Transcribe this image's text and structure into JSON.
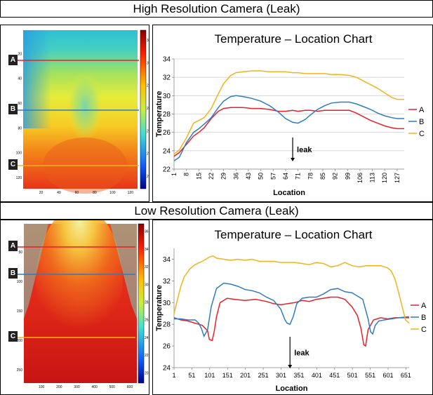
{
  "sections": [
    {
      "title": "High Resolution Camera (Leak)"
    },
    {
      "title": "Low Resolution Camera (Leak)"
    }
  ],
  "markers": [
    "A",
    "B",
    "C"
  ],
  "colors": {
    "A": "#e8202b",
    "B": "#2e7cbf",
    "C": "#f2b21c"
  },
  "thermal_high": {
    "y_ticks": [
      "20",
      "40",
      "60",
      "80",
      "100",
      "120"
    ],
    "x_ticks": [
      "20",
      "40",
      "60",
      "80",
      "100",
      "120"
    ],
    "colorbar_ticks": [
      "32",
      "30",
      "28",
      "26",
      "24",
      "22",
      "20"
    ]
  },
  "thermal_low": {
    "y_ticks": [
      "50",
      "100",
      "150",
      "200",
      "250"
    ],
    "x_ticks": [
      "100",
      "200",
      "300",
      "400",
      "500",
      "600"
    ],
    "colorbar_ticks": [
      "36",
      "34",
      "32",
      "30",
      "28",
      "26",
      "24",
      "22",
      "20"
    ]
  },
  "chart_data": [
    {
      "type": "line",
      "title": "Temperature – Location Chart",
      "xlabel": "Location",
      "ylabel": "Temperature",
      "ylim": [
        22,
        34
      ],
      "yticks": [
        22,
        24,
        26,
        28,
        30,
        32,
        34
      ],
      "xlim": [
        1,
        131
      ],
      "xticks": [
        1,
        8,
        15,
        22,
        29,
        36,
        43,
        50,
        57,
        64,
        71,
        78,
        85,
        92,
        99,
        106,
        113,
        120,
        127
      ],
      "grid": true,
      "legend": "right",
      "annotation": {
        "text": "leak",
        "x": 68
      },
      "series": [
        {
          "name": "A",
          "x": [
            1,
            4,
            8,
            12,
            15,
            18,
            22,
            26,
            29,
            33,
            36,
            40,
            45,
            50,
            55,
            60,
            64,
            68,
            71,
            75,
            78,
            82,
            86,
            90,
            95,
            100,
            104,
            108,
            112,
            116,
            120,
            124,
            127,
            131
          ],
          "y": [
            23.4,
            23.8,
            24.7,
            25.6,
            26.0,
            26.5,
            27.5,
            28.3,
            28.6,
            28.7,
            28.7,
            28.7,
            28.6,
            28.6,
            28.5,
            28.3,
            28.3,
            28.4,
            28.3,
            28.4,
            28.4,
            28.3,
            28.4,
            28.4,
            28.4,
            28.4,
            28.1,
            27.7,
            27.3,
            27.0,
            26.7,
            26.5,
            26.4,
            26.4
          ]
        },
        {
          "name": "B",
          "x": [
            1,
            4,
            8,
            12,
            15,
            18,
            22,
            26,
            29,
            33,
            36,
            40,
            45,
            50,
            55,
            60,
            64,
            68,
            71,
            75,
            78,
            82,
            86,
            90,
            95,
            100,
            104,
            108,
            112,
            116,
            120,
            124,
            127,
            131
          ],
          "y": [
            22.9,
            23.3,
            24.9,
            26.0,
            26.4,
            26.9,
            27.6,
            28.7,
            29.4,
            29.9,
            30.0,
            29.9,
            29.7,
            29.4,
            28.9,
            28.2,
            27.5,
            27.1,
            27.0,
            27.4,
            27.9,
            28.5,
            28.9,
            29.2,
            29.3,
            29.3,
            29.1,
            28.8,
            28.5,
            28.1,
            27.8,
            27.6,
            27.5,
            27.5
          ]
        },
        {
          "name": "C",
          "x": [
            1,
            4,
            8,
            12,
            15,
            18,
            22,
            26,
            29,
            33,
            36,
            40,
            45,
            50,
            55,
            60,
            64,
            68,
            71,
            75,
            78,
            82,
            86,
            90,
            95,
            100,
            104,
            108,
            112,
            116,
            120,
            124,
            127,
            131
          ],
          "y": [
            23.6,
            24.1,
            25.4,
            27.0,
            27.3,
            27.6,
            28.6,
            30.2,
            31.3,
            32.2,
            32.5,
            32.6,
            32.7,
            32.7,
            32.6,
            32.6,
            32.6,
            32.5,
            32.5,
            32.4,
            32.4,
            32.4,
            32.4,
            32.3,
            32.3,
            32.2,
            32.0,
            31.6,
            31.2,
            30.8,
            30.3,
            29.8,
            29.6,
            29.6
          ]
        }
      ]
    },
    {
      "type": "line",
      "title": "Temperature – Location Chart",
      "xlabel": "Location",
      "ylabel": "Temperature",
      "ylim": [
        24,
        35
      ],
      "yticks": [
        24,
        26,
        28,
        30,
        32,
        34
      ],
      "xlim": [
        1,
        660
      ],
      "xticks": [
        1,
        51,
        101,
        151,
        201,
        251,
        301,
        351,
        401,
        451,
        501,
        551,
        601,
        651
      ],
      "grid": false,
      "legend": "right",
      "annotation": {
        "text": "leak",
        "x": 326
      },
      "series": [
        {
          "name": "A",
          "x": [
            1,
            20,
            40,
            60,
            80,
            95,
            100,
            108,
            114,
            120,
            130,
            150,
            170,
            200,
            230,
            260,
            280,
            300,
            320,
            340,
            360,
            380,
            400,
            420,
            440,
            460,
            480,
            500,
            515,
            525,
            533,
            538,
            545,
            560,
            580,
            600,
            620,
            640,
            660
          ],
          "y": [
            28.6,
            28.4,
            28.3,
            28.1,
            27.9,
            27.4,
            26.6,
            26.5,
            27.4,
            28.7,
            30.0,
            30.4,
            30.3,
            30.2,
            30.3,
            30.1,
            29.9,
            29.8,
            29.9,
            30.0,
            30.2,
            30.1,
            30.3,
            30.4,
            30.5,
            30.5,
            30.3,
            29.6,
            28.8,
            27.6,
            26.1,
            26.0,
            27.5,
            28.4,
            28.6,
            28.5,
            28.6,
            28.6,
            28.6
          ]
        },
        {
          "name": "B",
          "x": [
            1,
            20,
            40,
            60,
            70,
            78,
            85,
            95,
            105,
            120,
            140,
            160,
            180,
            200,
            220,
            240,
            260,
            280,
            300,
            312,
            318,
            326,
            335,
            345,
            360,
            380,
            400,
            420,
            440,
            460,
            480,
            500,
            515,
            530,
            545,
            552,
            558,
            565,
            575,
            590,
            610,
            630,
            660
          ],
          "y": [
            28.5,
            28.5,
            28.4,
            28.4,
            28.1,
            27.6,
            26.9,
            27.5,
            29.6,
            31.3,
            31.8,
            31.7,
            31.5,
            31.2,
            31.1,
            30.9,
            30.5,
            30.2,
            29.4,
            28.4,
            28.1,
            28.0,
            28.7,
            29.9,
            30.4,
            30.5,
            30.5,
            30.8,
            31.2,
            31.3,
            31.0,
            30.9,
            30.6,
            30.3,
            28.5,
            27.3,
            27.1,
            27.9,
            28.3,
            28.4,
            28.5,
            28.6,
            28.7
          ]
        },
        {
          "name": "C",
          "x": [
            1,
            10,
            20,
            30,
            45,
            60,
            80,
            100,
            110,
            120,
            140,
            160,
            180,
            200,
            220,
            240,
            260,
            280,
            300,
            320,
            340,
            360,
            380,
            400,
            420,
            440,
            460,
            480,
            500,
            520,
            540,
            560,
            580,
            600,
            610,
            620,
            630,
            640,
            650,
            660
          ],
          "y": [
            29.0,
            30.2,
            31.5,
            32.4,
            33.1,
            33.5,
            33.8,
            34.2,
            34.3,
            34.1,
            34.0,
            33.9,
            34.0,
            33.9,
            34.0,
            33.8,
            33.8,
            33.8,
            33.7,
            33.7,
            33.7,
            33.6,
            33.5,
            33.7,
            33.6,
            33.3,
            33.4,
            33.7,
            33.4,
            33.3,
            33.4,
            33.4,
            33.4,
            33.2,
            32.9,
            32.2,
            31.0,
            29.7,
            28.4,
            28.1
          ]
        }
      ]
    }
  ]
}
